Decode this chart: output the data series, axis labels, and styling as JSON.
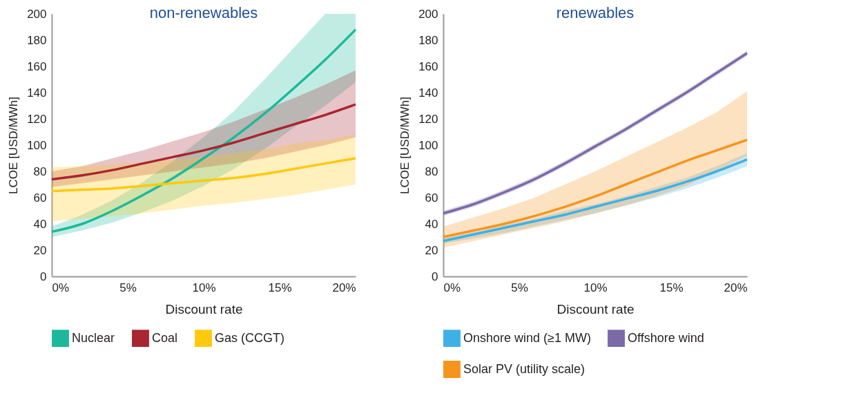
{
  "chart_data": [
    {
      "type": "line",
      "title": "non-renewables",
      "xlabel": "Discount rate",
      "ylabel": "LCOE    [USD/MWh]",
      "x": [
        0,
        2,
        4,
        6,
        8,
        10,
        12,
        14,
        16,
        18,
        20
      ],
      "xlim": [
        0,
        20
      ],
      "xticks": [
        {
          "value": 0,
          "label": "0%"
        },
        {
          "value": 5,
          "label": "5%"
        },
        {
          "value": 10,
          "label": "10%"
        },
        {
          "value": 15,
          "label": "15%"
        },
        {
          "value": 20,
          "label": "20%"
        }
      ],
      "ylim": [
        0,
        200
      ],
      "yticks": [
        0,
        20,
        40,
        60,
        80,
        100,
        120,
        140,
        160,
        180,
        200
      ],
      "grid": false,
      "legend": "bottom",
      "series": [
        {
          "name": "Nuclear",
          "color": "#1bb99a",
          "values": [
            34,
            40,
            50,
            62,
            75,
            90,
            106,
            124,
            144,
            165,
            188
          ],
          "lower": [
            30,
            35,
            41,
            49,
            58,
            69,
            82,
            97,
            114,
            130,
            148
          ],
          "upper": [
            38,
            47,
            58,
            72,
            88,
            106,
            126,
            150,
            175,
            200,
            200
          ]
        },
        {
          "name": "Coal",
          "color": "#a8262f",
          "values": [
            74,
            77,
            81,
            86,
            91,
            96,
            102,
            109,
            116,
            123,
            131
          ],
          "lower": [
            68,
            71,
            74,
            77,
            80,
            83,
            86,
            90,
            95,
            100,
            106
          ],
          "upper": [
            80,
            84,
            90,
            96,
            103,
            110,
            118,
            127,
            136,
            146,
            157
          ]
        },
        {
          "name": "Gas (CCGT)",
          "color": "#ffc90e",
          "values": [
            65,
            66,
            67,
            69,
            71,
            73,
            75,
            78,
            82,
            86,
            90
          ],
          "lower": [
            42,
            44,
            46,
            48,
            51,
            54,
            56,
            59,
            62,
            66,
            70
          ],
          "upper": [
            83,
            84,
            85,
            87,
            89,
            91,
            94,
            97,
            101,
            104,
            108
          ]
        }
      ]
    },
    {
      "type": "line",
      "title": "renewables",
      "xlabel": "Discount rate",
      "ylabel": "LCOE    [USD/MWh]",
      "x": [
        0,
        2,
        4,
        6,
        8,
        10,
        12,
        14,
        16,
        18,
        20
      ],
      "xlim": [
        0,
        20
      ],
      "xticks": [
        {
          "value": 0,
          "label": "0%"
        },
        {
          "value": 5,
          "label": "5%"
        },
        {
          "value": 10,
          "label": "10%"
        },
        {
          "value": 15,
          "label": "15%"
        },
        {
          "value": 20,
          "label": "20%"
        }
      ],
      "ylim": [
        0,
        200
      ],
      "yticks": [
        0,
        20,
        40,
        60,
        80,
        100,
        120,
        140,
        160,
        180,
        200
      ],
      "grid": false,
      "legend": "bottom",
      "series": [
        {
          "name": "Onshore wind (≥1 MW)",
          "color": "#3eb0e6",
          "values": [
            27,
            32,
            37,
            42,
            47,
            53,
            59,
            65,
            72,
            80,
            89
          ],
          "lower": [
            25,
            29,
            33,
            38,
            43,
            48,
            54,
            60,
            67,
            75,
            84
          ],
          "upper": [
            29,
            34,
            39,
            44,
            50,
            55,
            61,
            68,
            75,
            84,
            94
          ]
        },
        {
          "name": "Offshore wind",
          "color": "#7b6aa8",
          "values": [
            48,
            55,
            64,
            74,
            86,
            99,
            112,
            126,
            140,
            155,
            170
          ],
          "lower": [
            46,
            53,
            62,
            72,
            84,
            97,
            110,
            124,
            138,
            153,
            168
          ],
          "upper": [
            50,
            57,
            66,
            76,
            88,
            101,
            114,
            128,
            142,
            157,
            172
          ]
        },
        {
          "name": "Solar PV (utility scale)",
          "color": "#f7941d",
          "values": [
            30,
            35,
            40,
            46,
            53,
            61,
            70,
            79,
            88,
            96,
            104
          ],
          "lower": [
            22,
            27,
            32,
            37,
            42,
            48,
            54,
            61,
            69,
            80,
            92
          ],
          "upper": [
            38,
            45,
            52,
            60,
            70,
            80,
            91,
            102,
            113,
            125,
            141
          ]
        }
      ]
    }
  ]
}
